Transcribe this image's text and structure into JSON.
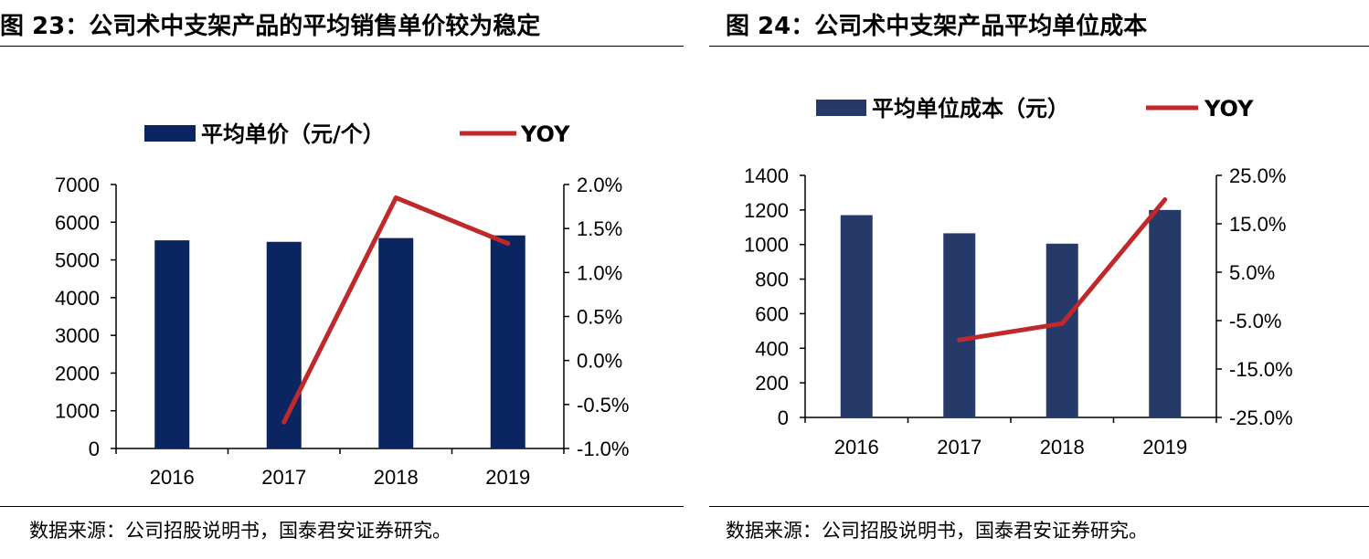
{
  "figures": [
    {
      "title": "图 23：公司术中支架产品的平均销售单价较为稳定",
      "source": "数据来源：公司招股说明书，国泰君安证券研究。",
      "chart_data": {
        "type": "bar",
        "combo": "bar+line, dual y-axis",
        "categories": [
          "2016",
          "2017",
          "2018",
          "2019"
        ],
        "series": [
          {
            "name": "平均单价（元/个）",
            "type": "bar",
            "axis": "left",
            "color": "#0b2561",
            "values": [
              5520,
              5480,
              5580,
              5650
            ]
          },
          {
            "name": "YOY",
            "type": "line",
            "axis": "right",
            "color": "#c0292b",
            "values": [
              null,
              -0.7,
              1.85,
              1.33
            ]
          }
        ],
        "ylim_left": [
          0,
          7000
        ],
        "yticks_left": [
          "0",
          "1000",
          "2000",
          "3000",
          "4000",
          "5000",
          "6000",
          "7000"
        ],
        "ylim_right": [
          -1.0,
          2.0
        ],
        "yticks_right": [
          "-1.0%",
          "-0.5%",
          "0.0%",
          "0.5%",
          "1.0%",
          "1.5%",
          "2.0%"
        ],
        "grid": false,
        "legend": "top"
      }
    },
    {
      "title": "图 24：公司术中支架产品平均单位成本",
      "source": "数据来源：公司招股说明书，国泰君安证券研究。",
      "chart_data": {
        "type": "bar",
        "combo": "bar+line, dual y-axis",
        "categories": [
          "2016",
          "2017",
          "2018",
          "2019"
        ],
        "series": [
          {
            "name": "平均单位成本（元）",
            "type": "bar",
            "axis": "left",
            "color": "#263a69",
            "values": [
              1170,
              1065,
              1005,
              1200
            ]
          },
          {
            "name": "YOY",
            "type": "line",
            "axis": "right",
            "color": "#c0292b",
            "values": [
              null,
              -9.0,
              -5.6,
              20.0
            ]
          }
        ],
        "ylim_left": [
          0,
          1400
        ],
        "yticks_left": [
          "0",
          "200",
          "400",
          "600",
          "800",
          "1000",
          "1200",
          "1400"
        ],
        "ylim_right": [
          -25.0,
          25.0
        ],
        "yticks_right": [
          "-25.0%",
          "-15.0%",
          "-5.0%",
          "5.0%",
          "15.0%",
          "25.0%"
        ],
        "grid": false,
        "legend": "top"
      }
    }
  ]
}
